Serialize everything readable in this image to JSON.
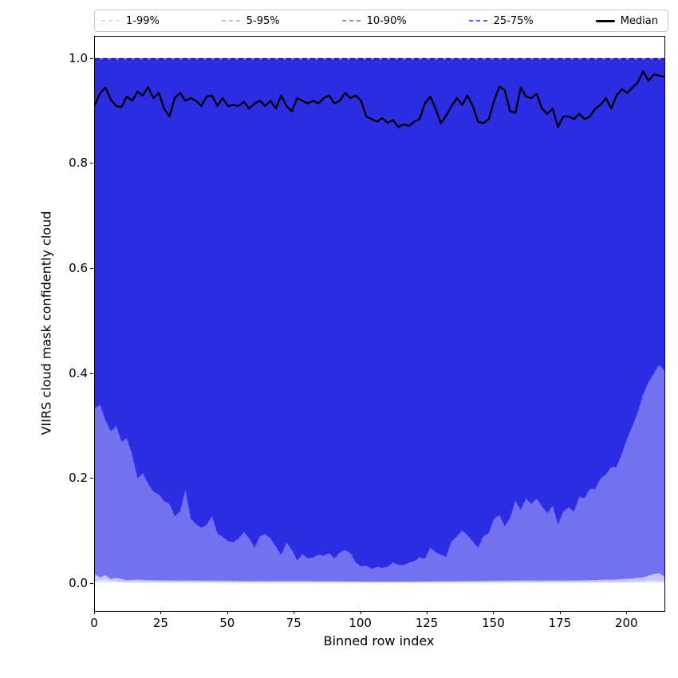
{
  "figure": {
    "background": "#ffffff"
  },
  "legend": {
    "items": [
      {
        "label": "1-99%",
        "color": "#d9d9f5",
        "style": "dashed",
        "thickness": 2
      },
      {
        "label": "5-95%",
        "color": "#bcbcf3",
        "style": "dashed",
        "thickness": 2
      },
      {
        "label": "10-90%",
        "color": "#8f8ff1",
        "style": "dashed",
        "thickness": 2
      },
      {
        "label": "25-75%",
        "color": "#6363ee",
        "style": "dashed",
        "thickness": 2
      },
      {
        "label": "Median",
        "color": "#000000",
        "style": "solid",
        "thickness": 3
      }
    ]
  },
  "axes": {
    "xlabel": "Binned row index",
    "ylabel": "VIIRS cloud mask confidently cloud",
    "xticks": [
      0,
      25,
      50,
      75,
      100,
      125,
      150,
      175,
      200
    ],
    "yticks": [
      {
        "label": "0.0",
        "value": 0.0
      },
      {
        "label": "0.2",
        "value": 0.2
      },
      {
        "label": "0.4",
        "value": 0.4
      },
      {
        "label": "0.6",
        "value": 0.6
      },
      {
        "label": "0.8",
        "value": 0.8
      },
      {
        "label": "1.0",
        "value": 1.0
      }
    ]
  },
  "chart_data": {
    "type": "area",
    "title": "",
    "xlabel": "Binned row index",
    "ylabel": "VIIRS cloud mask confidently cloud",
    "xlim": [
      0,
      214
    ],
    "ylim": [
      -0.052,
      1.042
    ],
    "grid": false,
    "legend_position": "top-expanded",
    "bands": [
      {
        "name": "1-99%",
        "upper": 1.0,
        "fill_color": "#e3e3fc",
        "line_color": "#d9d9f5",
        "lower": {
          "x": [
            0,
            50,
            150,
            214
          ],
          "y": [
            0.002,
            0.001,
            0.001,
            0.002
          ]
        }
      },
      {
        "name": "5-95%",
        "upper": 1.0,
        "fill_color": "#c6c6f8",
        "line_color": "#bcbcf3",
        "lower": {
          "x": [
            0,
            4,
            10,
            50,
            150,
            200,
            210,
            214
          ],
          "y": [
            0.006,
            0.008,
            0.004,
            0.003,
            0.003,
            0.004,
            0.007,
            0.005
          ]
        }
      },
      {
        "name": "10-90%",
        "upper": 1.0,
        "fill_color": "#7272f0",
        "line_color": "#8f8ff1",
        "lower": {
          "x": [
            0,
            2,
            4,
            6,
            8,
            12,
            16,
            20,
            30,
            40,
            60,
            80,
            100,
            120,
            140,
            160,
            180,
            195,
            202,
            206,
            209,
            212,
            214
          ],
          "y": [
            0.018,
            0.012,
            0.016,
            0.009,
            0.011,
            0.007,
            0.008,
            0.007,
            0.006,
            0.006,
            0.005,
            0.005,
            0.004,
            0.004,
            0.005,
            0.006,
            0.006,
            0.008,
            0.01,
            0.012,
            0.017,
            0.02,
            0.014
          ]
        }
      },
      {
        "name": "25-75%",
        "upper": 1.0,
        "fill_color": "#2c2ce3",
        "line_color": "#6363ee",
        "lower": {
          "x_start": 0,
          "x_step": 2,
          "y": [
            0.335,
            0.34,
            0.31,
            0.29,
            0.3,
            0.27,
            0.277,
            0.245,
            0.2,
            0.21,
            0.19,
            0.175,
            0.17,
            0.157,
            0.152,
            0.128,
            0.137,
            0.178,
            0.124,
            0.113,
            0.106,
            0.112,
            0.128,
            0.095,
            0.089,
            0.081,
            0.079,
            0.086,
            0.098,
            0.086,
            0.068,
            0.09,
            0.094,
            0.086,
            0.07,
            0.054,
            0.078,
            0.064,
            0.044,
            0.056,
            0.048,
            0.05,
            0.055,
            0.053,
            0.058,
            0.048,
            0.059,
            0.064,
            0.058,
            0.04,
            0.033,
            0.034,
            0.028,
            0.032,
            0.03,
            0.032,
            0.04,
            0.036,
            0.035,
            0.04,
            0.043,
            0.05,
            0.047,
            0.068,
            0.06,
            0.055,
            0.051,
            0.08,
            0.09,
            0.101,
            0.092,
            0.08,
            0.068,
            0.09,
            0.096,
            0.124,
            0.13,
            0.109,
            0.125,
            0.157,
            0.14,
            0.162,
            0.152,
            0.162,
            0.147,
            0.134,
            0.148,
            0.112,
            0.137,
            0.145,
            0.137,
            0.165,
            0.163,
            0.18,
            0.18,
            0.2,
            0.208,
            0.222,
            0.222,
            0.247,
            0.276,
            0.3,
            0.326,
            0.36,
            0.383,
            0.4,
            0.417,
            0.405
          ]
        }
      }
    ],
    "median": {
      "name": "Median",
      "color": "#000000",
      "x_start": 0,
      "x_step": 2,
      "y": [
        0.912,
        0.935,
        0.945,
        0.922,
        0.91,
        0.908,
        0.928,
        0.92,
        0.937,
        0.93,
        0.946,
        0.925,
        0.935,
        0.905,
        0.89,
        0.925,
        0.935,
        0.92,
        0.925,
        0.92,
        0.91,
        0.928,
        0.93,
        0.91,
        0.925,
        0.91,
        0.912,
        0.91,
        0.918,
        0.905,
        0.915,
        0.92,
        0.91,
        0.92,
        0.905,
        0.93,
        0.91,
        0.9,
        0.925,
        0.92,
        0.915,
        0.92,
        0.915,
        0.925,
        0.93,
        0.915,
        0.92,
        0.935,
        0.925,
        0.93,
        0.92,
        0.89,
        0.885,
        0.88,
        0.887,
        0.878,
        0.883,
        0.87,
        0.875,
        0.872,
        0.88,
        0.885,
        0.915,
        0.928,
        0.905,
        0.877,
        0.892,
        0.91,
        0.925,
        0.912,
        0.93,
        0.91,
        0.88,
        0.877,
        0.885,
        0.92,
        0.947,
        0.94,
        0.9,
        0.897,
        0.945,
        0.928,
        0.925,
        0.933,
        0.905,
        0.895,
        0.905,
        0.87,
        0.89,
        0.89,
        0.885,
        0.895,
        0.885,
        0.89,
        0.905,
        0.912,
        0.925,
        0.905,
        0.93,
        0.942,
        0.935,
        0.945,
        0.955,
        0.976,
        0.958,
        0.97,
        0.968,
        0.965
      ]
    },
    "upper_bound_dash_colors": [
      "#7a7af0",
      "#15157d"
    ],
    "zero_dash_color": "rgba(255,255,255,0.9)"
  }
}
